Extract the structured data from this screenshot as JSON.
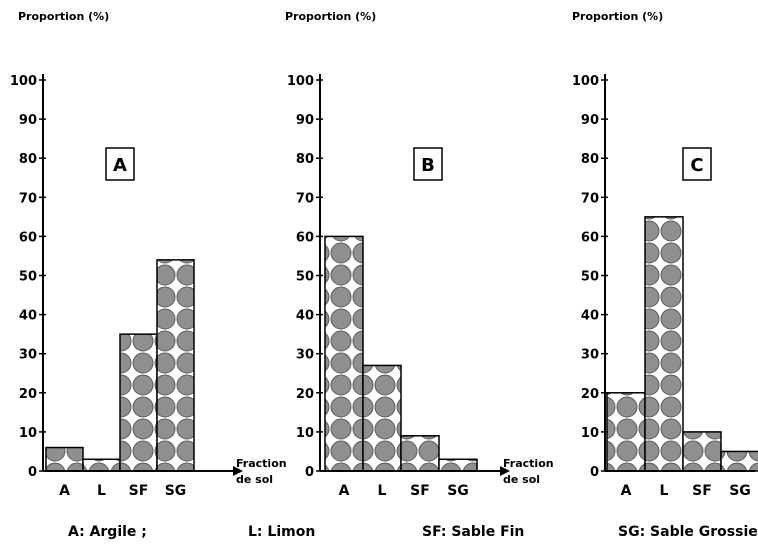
{
  "chart_data": [
    {
      "type": "bar",
      "panel_letter": "A",
      "ylabel": "Proportion (%)",
      "xlabel_line1": "Fraction",
      "xlabel_line2": "de sol",
      "categories": [
        "A",
        "L",
        "SF",
        "SG"
      ],
      "values": [
        6,
        3,
        35,
        54
      ],
      "yticks": [
        "0",
        "10",
        "20",
        "30",
        "40",
        "50",
        "60",
        "70",
        "80",
        "90",
        "100"
      ],
      "ylim": [
        0,
        100
      ]
    },
    {
      "type": "bar",
      "panel_letter": "B",
      "ylabel": "Proportion (%)",
      "xlabel_line1": "Fraction",
      "xlabel_line2": "de sol",
      "categories": [
        "A",
        "L",
        "SF",
        "SG"
      ],
      "values": [
        60,
        27,
        9,
        3
      ],
      "yticks": [
        "0",
        "10",
        "20",
        "30",
        "40",
        "50",
        "60",
        "70",
        "80",
        "90",
        "100"
      ],
      "ylim": [
        0,
        100
      ]
    },
    {
      "type": "bar",
      "panel_letter": "C",
      "ylabel": "Proportion (%)",
      "xlabel_line1": "",
      "xlabel_line2": "",
      "categories": [
        "A",
        "L",
        "SF",
        "SG"
      ],
      "values": [
        20,
        65,
        10,
        5
      ],
      "yticks": [
        "0",
        "10",
        "20",
        "30",
        "40",
        "50",
        "60",
        "70",
        "80",
        "90",
        "100"
      ],
      "ylim": [
        0,
        100
      ]
    }
  ],
  "legend": {
    "a": "A: Argile ;",
    "l": "L: Limon",
    "sf": "SF: Sable Fin",
    "sg": "SG: Sable Grossier"
  }
}
